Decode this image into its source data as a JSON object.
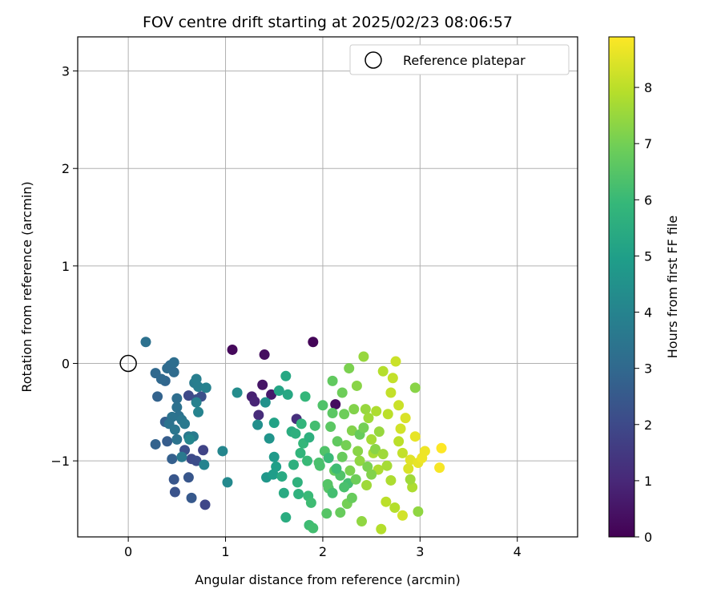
{
  "chart_data": {
    "type": "scatter",
    "title": "FOV centre drift starting at 2025/02/23 08:06:57",
    "xlabel": "Angular distance from reference (arcmin)",
    "ylabel": "Rotation from reference (arcmin)",
    "xlim": [
      -0.52,
      4.62
    ],
    "ylim": [
      -1.78,
      3.35
    ],
    "xticks": [
      0,
      1,
      2,
      3,
      4
    ],
    "yticks": [
      -1,
      0,
      1,
      2,
      3
    ],
    "grid": true,
    "legend": {
      "placement": "top-right",
      "entries": [
        "Reference platepar"
      ]
    },
    "reference_point": {
      "x": 0,
      "y": 0,
      "label": "Reference platepar"
    },
    "colorbar": {
      "label": "Hours from first FF file",
      "range": [
        0,
        8.9
      ],
      "ticks": [
        0,
        1,
        2,
        3,
        4,
        5,
        6,
        7,
        8
      ],
      "colormap": "viridis",
      "colors": [
        "#440154",
        "#482878",
        "#3e4989",
        "#31688e",
        "#26828e",
        "#1f9e89",
        "#35b779",
        "#6ece58",
        "#b5de2b",
        "#fde725"
      ]
    },
    "series": [
      {
        "points": [
          [
            1.9,
            0.22,
            0.1
          ],
          [
            1.07,
            0.14,
            0.2
          ],
          [
            1.4,
            0.09,
            0.3
          ],
          [
            1.38,
            -0.22,
            0.5
          ],
          [
            1.47,
            -0.32,
            0.6
          ],
          [
            1.27,
            -0.34,
            0.8
          ],
          [
            1.3,
            -0.39,
            0.9
          ],
          [
            1.34,
            -0.53,
            1.1
          ],
          [
            1.73,
            -0.57,
            1.2
          ],
          [
            2.13,
            -0.42,
            0.3
          ],
          [
            0.77,
            -0.89,
            1.8
          ],
          [
            0.79,
            -1.45,
            1.9
          ],
          [
            0.65,
            -0.98,
            2.0
          ],
          [
            0.7,
            -1.0,
            2.1
          ],
          [
            0.58,
            -0.89,
            2.2
          ],
          [
            0.48,
            -1.32,
            2.3
          ],
          [
            0.62,
            -1.17,
            2.4
          ],
          [
            0.47,
            -1.19,
            2.4
          ],
          [
            0.65,
            -1.38,
            2.5
          ],
          [
            0.62,
            -0.33,
            2.0
          ],
          [
            0.7,
            -0.37,
            2.1
          ],
          [
            0.75,
            -0.34,
            2.2
          ],
          [
            0.4,
            -0.8,
            2.6
          ],
          [
            0.38,
            -0.6,
            2.7
          ],
          [
            0.45,
            -0.98,
            2.7
          ],
          [
            0.28,
            -0.83,
            2.8
          ],
          [
            0.3,
            -0.34,
            2.8
          ],
          [
            0.38,
            -0.18,
            2.9
          ],
          [
            0.34,
            -0.16,
            3.0
          ],
          [
            0.28,
            -0.1,
            3.0
          ],
          [
            0.4,
            -0.05,
            3.1
          ],
          [
            0.43,
            -0.02,
            3.1
          ],
          [
            0.47,
            0.01,
            3.2
          ],
          [
            0.47,
            -0.09,
            3.1
          ],
          [
            0.18,
            0.22,
            3.3
          ],
          [
            0.5,
            -0.36,
            3.2
          ],
          [
            0.5,
            -0.45,
            3.3
          ],
          [
            0.52,
            -0.54,
            3.3
          ],
          [
            0.45,
            -0.55,
            3.4
          ],
          [
            0.42,
            -0.62,
            3.4
          ],
          [
            0.48,
            -0.68,
            3.5
          ],
          [
            0.55,
            -0.58,
            3.5
          ],
          [
            0.58,
            -0.62,
            3.6
          ],
          [
            0.62,
            -0.75,
            3.6
          ],
          [
            0.67,
            -0.75,
            3.7
          ],
          [
            0.5,
            -0.78,
            3.4
          ],
          [
            0.55,
            -0.96,
            3.6
          ],
          [
            0.68,
            -0.2,
            3.7
          ],
          [
            0.7,
            -0.16,
            3.8
          ],
          [
            0.72,
            -0.24,
            3.8
          ],
          [
            0.8,
            -0.25,
            3.9
          ],
          [
            0.7,
            -0.4,
            3.9
          ],
          [
            0.72,
            -0.5,
            4.0
          ],
          [
            0.78,
            -1.04,
            4.0
          ],
          [
            0.63,
            -0.78,
            4.1
          ],
          [
            0.97,
            -0.9,
            4.1
          ],
          [
            1.02,
            -1.22,
            4.2
          ],
          [
            1.12,
            -0.3,
            4.3
          ],
          [
            1.33,
            -0.63,
            4.4
          ],
          [
            1.41,
            -0.4,
            4.5
          ],
          [
            1.45,
            -0.77,
            4.6
          ],
          [
            1.42,
            -1.17,
            4.7
          ],
          [
            1.5,
            -0.96,
            4.8
          ],
          [
            1.49,
            -1.14,
            4.9
          ],
          [
            1.52,
            -1.06,
            5.0
          ],
          [
            1.5,
            -0.61,
            5.1
          ],
          [
            1.55,
            -0.28,
            5.2
          ],
          [
            1.62,
            -0.13,
            5.3
          ],
          [
            1.64,
            -0.32,
            5.3
          ],
          [
            1.58,
            -1.16,
            5.4
          ],
          [
            1.6,
            -1.33,
            5.4
          ],
          [
            1.62,
            -1.58,
            5.5
          ],
          [
            1.68,
            -0.7,
            5.5
          ],
          [
            1.7,
            -1.04,
            5.6
          ],
          [
            1.72,
            -0.72,
            5.6
          ],
          [
            1.74,
            -1.22,
            5.7
          ],
          [
            1.75,
            -1.34,
            5.7
          ],
          [
            1.77,
            -0.92,
            5.8
          ],
          [
            1.78,
            -0.62,
            5.8
          ],
          [
            1.8,
            -0.82,
            5.9
          ],
          [
            1.82,
            -0.34,
            5.9
          ],
          [
            1.84,
            -1.0,
            6.0
          ],
          [
            1.85,
            -1.36,
            6.0
          ],
          [
            1.86,
            -1.66,
            6.1
          ],
          [
            1.88,
            -1.43,
            6.1
          ],
          [
            1.86,
            -0.76,
            5.6
          ],
          [
            1.9,
            -1.69,
            6.2
          ],
          [
            1.92,
            -0.64,
            6.2
          ],
          [
            1.96,
            -1.02,
            6.3
          ],
          [
            1.97,
            -1.05,
            6.3
          ],
          [
            2.0,
            -0.43,
            6.4
          ],
          [
            2.02,
            -0.9,
            6.4
          ],
          [
            2.04,
            -1.54,
            6.5
          ],
          [
            2.05,
            -1.24,
            6.5
          ],
          [
            2.06,
            -1.28,
            6.5
          ],
          [
            2.08,
            -0.65,
            6.6
          ],
          [
            2.1,
            -0.51,
            6.6
          ],
          [
            2.1,
            -0.18,
            6.7
          ],
          [
            2.12,
            -1.1,
            6.7
          ],
          [
            2.15,
            -0.8,
            6.7
          ],
          [
            2.18,
            -1.53,
            6.8
          ],
          [
            2.2,
            -0.96,
            6.8
          ],
          [
            2.2,
            -0.3,
            6.9
          ],
          [
            2.22,
            -0.52,
            6.9
          ],
          [
            2.24,
            -0.84,
            7.0
          ],
          [
            2.25,
            -1.44,
            7.0
          ],
          [
            2.27,
            -0.05,
            7.1
          ],
          [
            2.28,
            -1.1,
            7.1
          ],
          [
            2.3,
            -0.69,
            7.2
          ],
          [
            2.32,
            -0.47,
            7.2
          ],
          [
            2.35,
            -0.23,
            7.3
          ],
          [
            2.36,
            -0.9,
            7.3
          ],
          [
            2.38,
            -1.0,
            7.4
          ],
          [
            2.4,
            -1.62,
            7.4
          ],
          [
            2.42,
            0.07,
            7.5
          ],
          [
            2.44,
            -0.47,
            7.5
          ],
          [
            2.45,
            -1.25,
            7.6
          ],
          [
            2.47,
            -0.56,
            7.6
          ],
          [
            2.5,
            -0.78,
            7.7
          ],
          [
            2.52,
            -0.92,
            7.7
          ],
          [
            2.55,
            -0.49,
            7.8
          ],
          [
            2.57,
            -1.09,
            7.8
          ],
          [
            2.6,
            -1.7,
            7.9
          ],
          [
            2.62,
            -0.08,
            7.9
          ],
          [
            2.65,
            -1.42,
            8.0
          ],
          [
            2.67,
            -0.52,
            8.0
          ],
          [
            2.7,
            -0.3,
            8.1
          ],
          [
            2.72,
            -0.15,
            8.1
          ],
          [
            2.75,
            0.02,
            8.2
          ],
          [
            2.78,
            -0.43,
            8.2
          ],
          [
            2.8,
            -0.67,
            8.3
          ],
          [
            2.82,
            -1.56,
            8.3
          ],
          [
            2.85,
            -0.56,
            8.4
          ],
          [
            2.88,
            -1.08,
            8.4
          ],
          [
            2.9,
            -0.99,
            8.5
          ],
          [
            2.95,
            -0.75,
            8.6
          ],
          [
            2.98,
            -1.02,
            8.6
          ],
          [
            3.02,
            -0.97,
            8.7
          ],
          [
            3.05,
            -0.9,
            8.7
          ],
          [
            3.2,
            -1.07,
            8.8
          ],
          [
            3.22,
            -0.87,
            8.9
          ],
          [
            2.98,
            -1.52,
            7.4
          ],
          [
            2.95,
            -0.25,
            7.3
          ],
          [
            2.92,
            -1.27,
            7.8
          ],
          [
            2.9,
            -1.19,
            7.6
          ],
          [
            2.26,
            -1.23,
            6.2
          ],
          [
            2.22,
            -1.27,
            6.3
          ],
          [
            2.18,
            -1.15,
            6.4
          ],
          [
            2.14,
            -1.08,
            6.1
          ],
          [
            2.1,
            -1.33,
            6.2
          ],
          [
            2.06,
            -0.97,
            6.0
          ],
          [
            2.3,
            -1.38,
            6.8
          ],
          [
            2.34,
            -1.19,
            6.9
          ],
          [
            2.38,
            -0.73,
            6.8
          ],
          [
            2.42,
            -0.66,
            7.0
          ],
          [
            2.46,
            -1.06,
            7.1
          ],
          [
            2.5,
            -1.14,
            7.2
          ],
          [
            2.54,
            -0.88,
            7.3
          ],
          [
            2.58,
            -0.7,
            7.5
          ],
          [
            2.62,
            -0.93,
            7.6
          ],
          [
            2.66,
            -1.05,
            7.7
          ],
          [
            2.7,
            -1.2,
            7.8
          ],
          [
            2.74,
            -1.48,
            7.9
          ],
          [
            2.78,
            -0.8,
            8.0
          ],
          [
            2.82,
            -0.92,
            8.1
          ]
        ]
      }
    ]
  }
}
